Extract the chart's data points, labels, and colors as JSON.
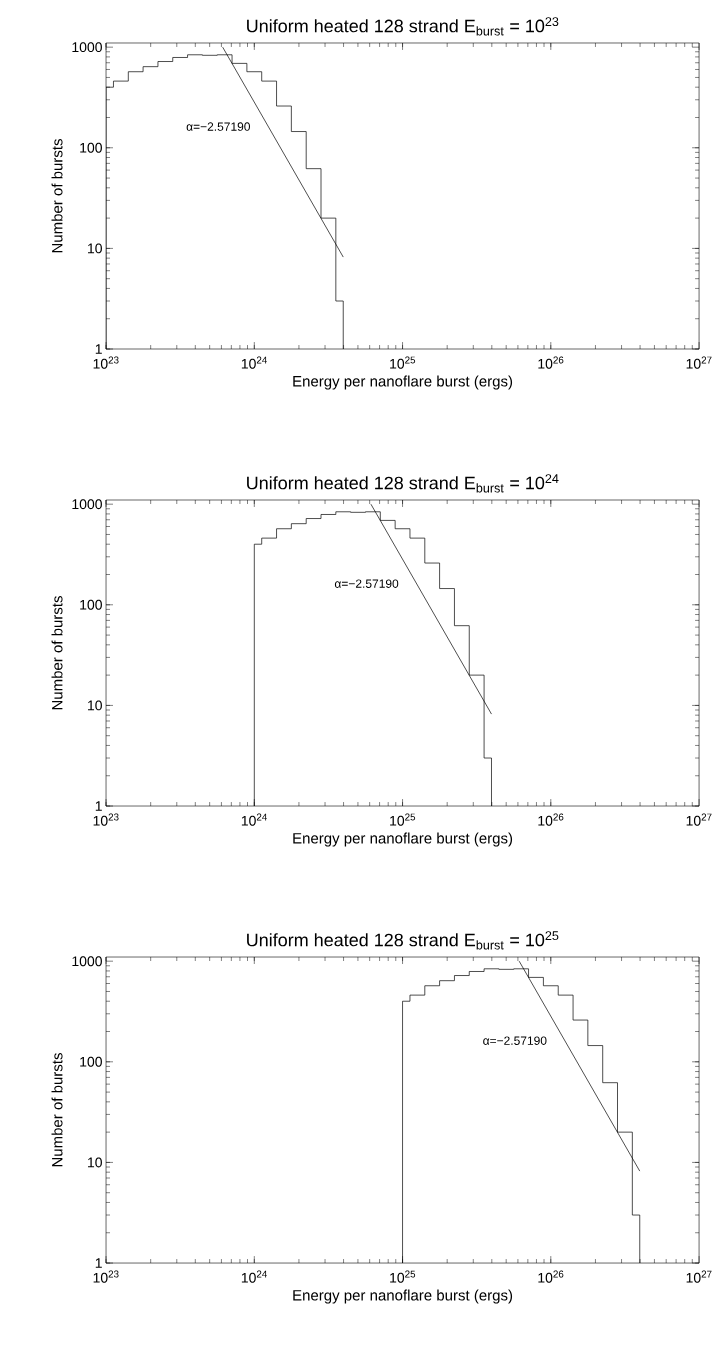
{
  "chart_data": [
    {
      "type": "histogram",
      "title": "Uniform heated 128 strand E$_{burst}$ = 10$^{23}$",
      "xlabel": "Energy per nanoflare burst (ergs)",
      "ylabel": "Number of bursts",
      "log": "xy",
      "xlim": [
        1e+23,
        1e+27
      ],
      "ylim": [
        1,
        1100
      ],
      "xticks": [
        {
          "value": 1e+23,
          "label": "10$^{23}$"
        },
        {
          "value": 1e+24,
          "label": "10$^{24}$"
        },
        {
          "value": 1e+25,
          "label": "10$^{25}$"
        },
        {
          "value": 1e+26,
          "label": "10$^{26}$"
        },
        {
          "value": 1e+27,
          "label": "10$^{27}$"
        }
      ],
      "yticks": [
        1,
        10,
        100,
        1000
      ],
      "series": [
        {
          "color": "#000000",
          "bins": [
            1e+23,
            1.122e+23,
            1.413e+23,
            1.778e+23,
            2.239e+23,
            2.818e+23,
            3.548e+23,
            4.467e+23,
            5.623e+23,
            7.079e+23,
            8.913e+23,
            1.122e+24,
            1.413e+24,
            1.778e+24,
            2.239e+24,
            2.818e+24,
            3.548e+24,
            3.981e+24
          ],
          "values": [
            400,
            460,
            570,
            640,
            720,
            790,
            840,
            830,
            840,
            690,
            570,
            460,
            260,
            145,
            62,
            20,
            3
          ]
        },
        {
          "type": "line",
          "color": "#000000",
          "x": [
            6.12e+23,
            3.981e+24
          ],
          "values": [
            1000,
            8.2
          ]
        }
      ],
      "annotations": [
        "α=−2.57190"
      ]
    },
    {
      "type": "histogram",
      "title": "Uniform heated 128 strand E$_{burst}$ = 10$^{24}$",
      "xlabel": "Energy per nanoflare burst (ergs)",
      "ylabel": "Number of bursts",
      "log": "xy",
      "xlim": [
        1e+23,
        1e+27
      ],
      "ylim": [
        1,
        1100
      ],
      "xticks": [
        {
          "value": 1e+23,
          "label": "10$^{23}$"
        },
        {
          "value": 1e+24,
          "label": "10$^{24}$"
        },
        {
          "value": 1e+25,
          "label": "10$^{25}$"
        },
        {
          "value": 1e+26,
          "label": "10$^{26}$"
        },
        {
          "value": 1e+27,
          "label": "10$^{27}$"
        }
      ],
      "yticks": [
        1,
        10,
        100,
        1000
      ],
      "series": [
        {
          "color": "#000000",
          "bins": [
            1e+24,
            1.122e+24,
            1.413e+24,
            1.778e+24,
            2.239e+24,
            2.818e+24,
            3.548e+24,
            4.467e+24,
            5.623e+24,
            7.079e+24,
            8.913e+24,
            1.122e+25,
            1.413e+25,
            1.778e+25,
            2.239e+25,
            2.818e+25,
            3.548e+25,
            3.981e+25
          ],
          "values": [
            400,
            460,
            570,
            640,
            720,
            790,
            840,
            830,
            840,
            690,
            570,
            460,
            260,
            145,
            62,
            20,
            3
          ]
        },
        {
          "type": "line",
          "color": "#000000",
          "x": [
            6.12e+24,
            3.981e+25
          ],
          "values": [
            1000,
            8.2
          ]
        }
      ],
      "annotations": [
        "α=−2.57190"
      ]
    },
    {
      "type": "histogram",
      "title": "Uniform heated 128 strand E$_{burst}$ = 10$^{25}$",
      "xlabel": "Energy per nanoflare burst (ergs)",
      "ylabel": "Number of bursts",
      "log": "xy",
      "xlim": [
        1e+23,
        1e+27
      ],
      "ylim": [
        1,
        1100
      ],
      "xticks": [
        {
          "value": 1e+23,
          "label": "10$^{23}$"
        },
        {
          "value": 1e+24,
          "label": "10$^{24}$"
        },
        {
          "value": 1e+25,
          "label": "10$^{25}$"
        },
        {
          "value": 1e+26,
          "label": "10$^{26}$"
        },
        {
          "value": 1e+27,
          "label": "10$^{27}$"
        }
      ],
      "yticks": [
        1,
        10,
        100,
        1000
      ],
      "series": [
        {
          "color": "#000000",
          "bins": [
            1e+25,
            1.122e+25,
            1.413e+25,
            1.778e+25,
            2.239e+25,
            2.818e+25,
            3.548e+25,
            4.467e+25,
            5.623e+25,
            7.079e+25,
            8.913e+25,
            1.122e+26,
            1.413e+26,
            1.778e+26,
            2.239e+26,
            2.818e+26,
            3.548e+26,
            3.981e+26
          ],
          "values": [
            400,
            460,
            570,
            640,
            720,
            790,
            840,
            830,
            840,
            690,
            570,
            460,
            260,
            145,
            62,
            20,
            3
          ]
        },
        {
          "type": "line",
          "color": "#000000",
          "x": [
            6.12e+25,
            3.981e+26
          ],
          "values": [
            1000,
            8.2
          ]
        }
      ],
      "annotations": [
        "α=−2.57190"
      ]
    }
  ]
}
